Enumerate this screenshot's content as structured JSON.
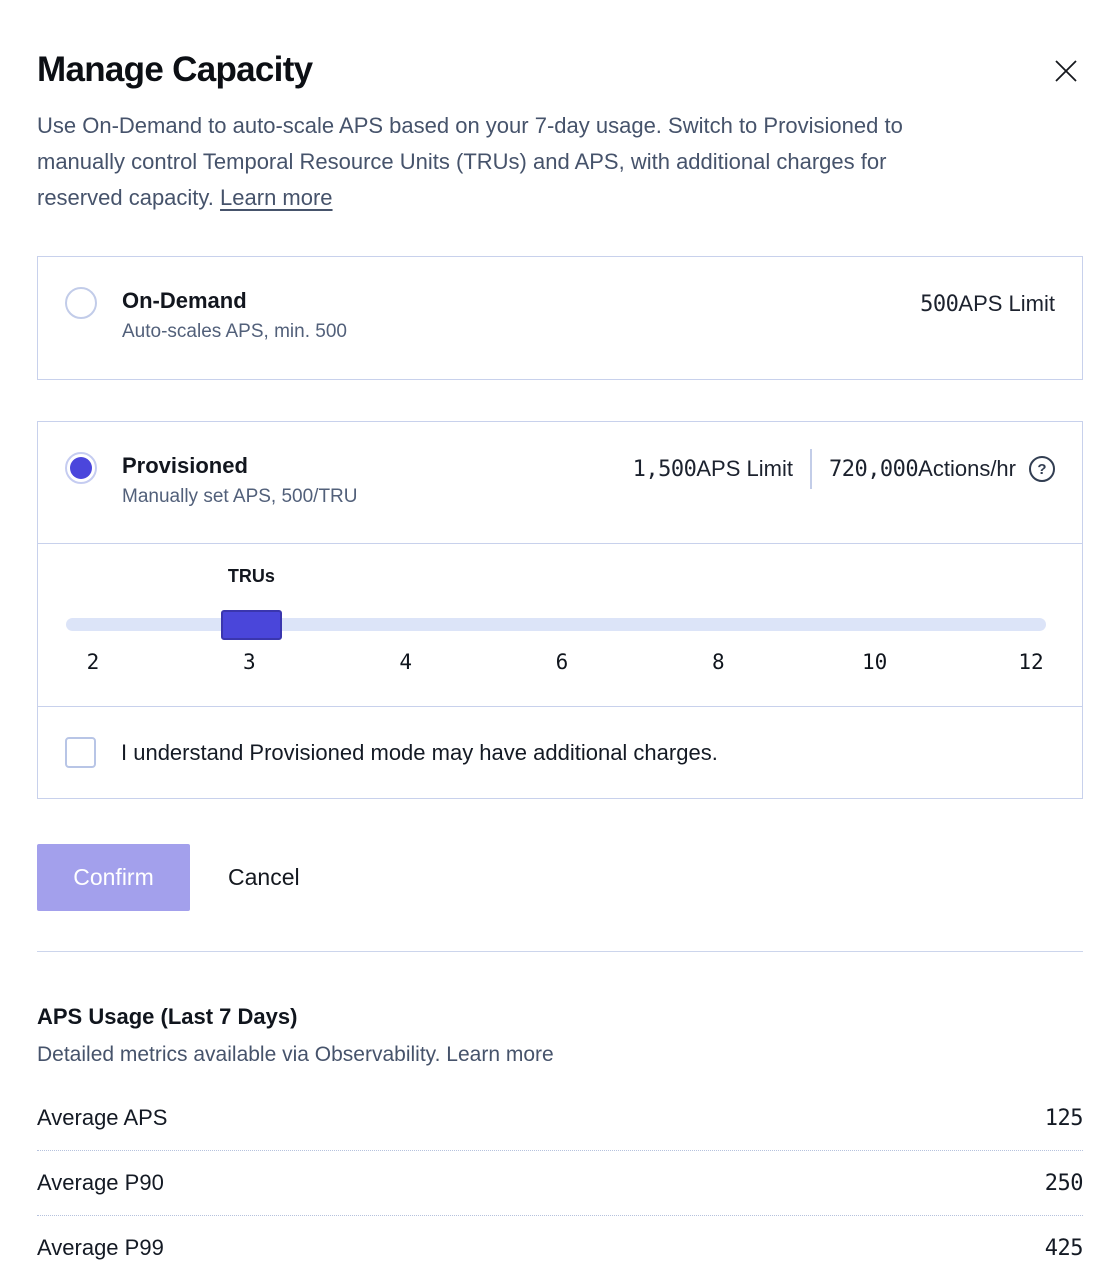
{
  "dialog": {
    "title": "Manage Capacity",
    "description": "Use On-Demand to auto-scale APS based on your 7-day usage. Switch to Provisioned to\nmanually control Temporal Resource Units (TRUs) and APS, with additional charges for\nreserved capacity.",
    "learn_more": "Learn more"
  },
  "on_demand": {
    "title": "On-Demand",
    "subtitle": "Auto-scales APS, min. 500",
    "aps_value": "500",
    "aps_label": " APS Limit",
    "selected": false
  },
  "provisioned": {
    "title": "Provisioned",
    "subtitle": "Manually set APS, 500/TRU",
    "aps_value": "1,500",
    "aps_label": " APS Limit",
    "actions_value": "720,000",
    "actions_label": " Actions/hr",
    "help_icon": "?",
    "selected": true
  },
  "slider": {
    "label": "TRUs",
    "ticks": [
      "2",
      "3",
      "4",
      "6",
      "8",
      "10",
      "12"
    ],
    "value": "3"
  },
  "checkbox": {
    "label": "I understand Provisioned mode may have additional charges.",
    "checked": false
  },
  "actions": {
    "confirm": "Confirm",
    "cancel": "Cancel"
  },
  "usage": {
    "title": "APS Usage (Last 7 Days)",
    "subtitle": "Detailed metrics available via Observability.",
    "learn_more": "Learn more",
    "rows": [
      {
        "label": "Average APS",
        "value": "125"
      },
      {
        "label": "Average P90",
        "value": "250"
      },
      {
        "label": "Average P99",
        "value": "425"
      }
    ]
  },
  "colors": {
    "accent_indigo": "#4a46da",
    "accent_indigo_border": "#3a36ae",
    "confirm_disabled_bg": "#a3a0ec",
    "card_border": "#c8d1ec",
    "slider_track": "#dce4f8",
    "muted_text": "#46536b",
    "dark_text": "#10151d"
  }
}
